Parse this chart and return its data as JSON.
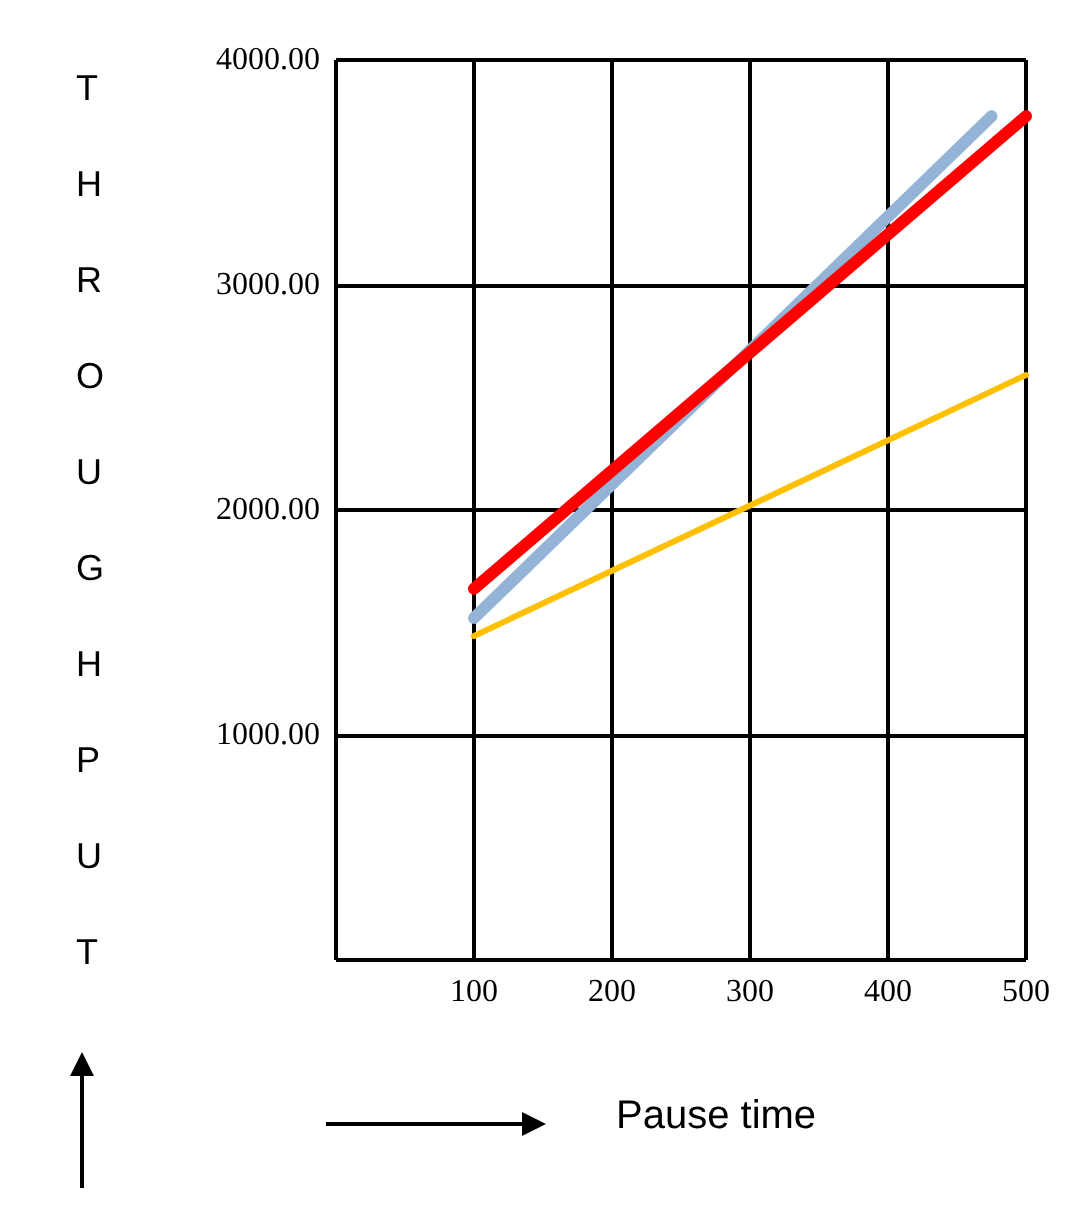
{
  "chart_data": {
    "type": "line",
    "xlabel": "Pause time",
    "ylabel": "THROUGHPUT",
    "x": [
      100,
      500
    ],
    "series": [
      {
        "color": "#93b3d7",
        "values": [
          1520,
          3750
        ],
        "x": [
          100,
          475
        ]
      },
      {
        "color": "#ff0000",
        "values": [
          1650,
          3750
        ]
      },
      {
        "color": "#ffc000",
        "values": [
          1440,
          2600
        ]
      }
    ],
    "xlim": [
      0,
      500
    ],
    "xticks": [
      100,
      200,
      300,
      400,
      500
    ],
    "ylim": [
      0,
      4000
    ],
    "yticks": [
      {
        "value": 1000,
        "label": "1000.00"
      },
      {
        "value": 2000,
        "label": "2000.00"
      },
      {
        "value": 3000,
        "label": "3000.00"
      },
      {
        "value": 4000,
        "label": "4000.00"
      }
    ],
    "grid": true,
    "marker": "none",
    "line_style": "solid"
  }
}
